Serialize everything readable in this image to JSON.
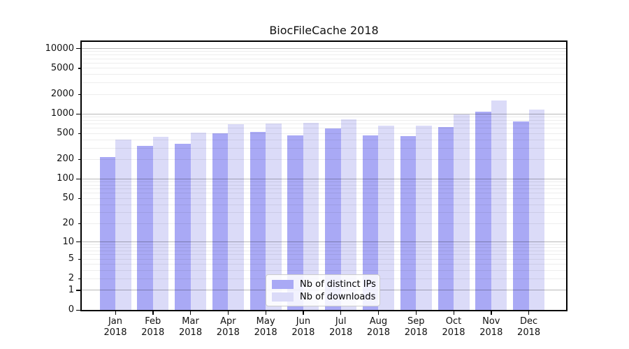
{
  "title": "BiocFileCache 2018",
  "legend": {
    "position": "lower center",
    "items": [
      {
        "label": "Nb of distinct IPs",
        "color": "#a9a9f5"
      },
      {
        "label": "Nb of downloads",
        "color": "#dbdbf8"
      }
    ]
  },
  "chart_data": {
    "type": "bar",
    "title": "BiocFileCache 2018",
    "categories": [
      "Jan",
      "Feb",
      "Mar",
      "Apr",
      "May",
      "Jun",
      "Jul",
      "Aug",
      "Sep",
      "Oct",
      "Nov",
      "Dec"
    ],
    "year": "2018",
    "series": [
      {
        "name": "Nb of distinct IPs",
        "color": "#a9a9f5",
        "values": [
          218,
          325,
          352,
          505,
          528,
          468,
          592,
          468,
          452,
          630,
          1080,
          765
        ]
      },
      {
        "name": "Nb of downloads",
        "color": "#dbdbf8",
        "values": [
          400,
          440,
          512,
          695,
          712,
          735,
          830,
          655,
          662,
          970,
          1600,
          1150
        ]
      }
    ],
    "xlabel": "",
    "ylabel": "",
    "y_scale": "log10(value+1)",
    "y_ticks": [
      0,
      1,
      2,
      5,
      10,
      20,
      50,
      100,
      200,
      500,
      1000,
      2000,
      5000,
      10000
    ],
    "y_major_ticks": [
      0,
      1,
      10,
      100,
      1000,
      10000
    ],
    "ylim": [
      0,
      12660
    ],
    "grid": true,
    "grid_minor_multiples": [
      2,
      3,
      4,
      5,
      6,
      7,
      8,
      9
    ],
    "legend_position": "lower center"
  }
}
